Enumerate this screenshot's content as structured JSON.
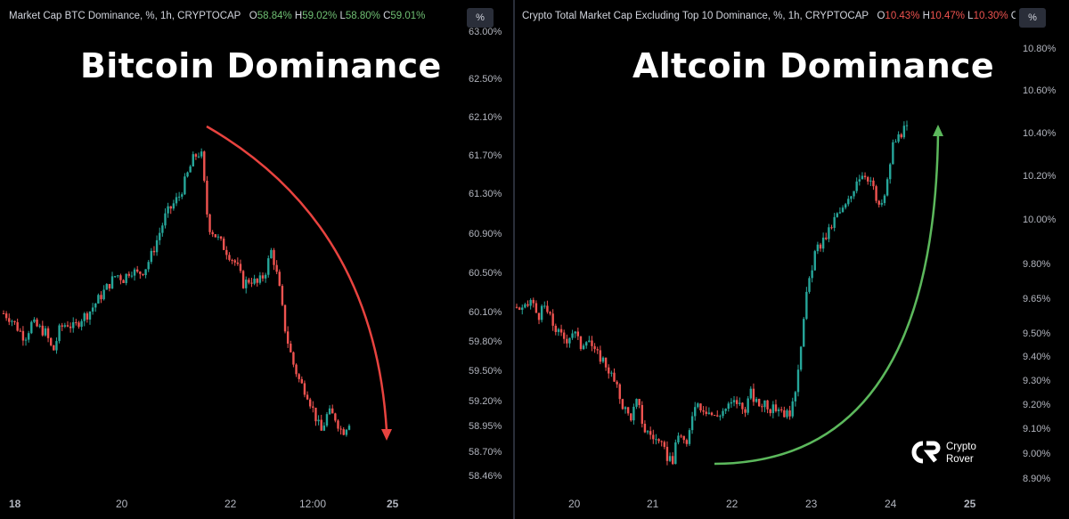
{
  "left": {
    "legend": {
      "name": "Market Cap BTC Dominance, %, 1h, CRYPTOCAP",
      "o_label": "O",
      "o": "58.84%",
      "h_label": "H",
      "h": "59.02%",
      "l_label": "L",
      "l": "58.80%",
      "c_label": "C",
      "c": "59.01%"
    },
    "title": "Bitcoin Dominance",
    "unit_badge": "%"
  },
  "right": {
    "legend": {
      "name": "Crypto Total Market Cap Excluding Top 10 Dominance, %, 1h, CRYPTOCAP",
      "o_label": "O",
      "o": "10.43%",
      "h_label": "H",
      "h": "10.47%",
      "l_label": "L",
      "l": "10.30%",
      "c_label": "C…"
    },
    "title": "Altcoin Dominance",
    "unit_badge": "%"
  },
  "logo": {
    "line1": "Crypto",
    "line2": "Rover"
  },
  "colors": {
    "up": "#26a69a",
    "down": "#ef5350",
    "arrow_down": "#e8433f",
    "arrow_up": "#5cb85c"
  },
  "chart_data": [
    {
      "type": "candlestick",
      "title": "Bitcoin Dominance",
      "unit": "%",
      "y_ticks": [
        "63.00%",
        "62.50%",
        "62.10%",
        "61.70%",
        "61.30%",
        "60.90%",
        "60.50%",
        "60.10%",
        "59.80%",
        "59.50%",
        "59.20%",
        "58.95%",
        "58.70%",
        "58.46%"
      ],
      "x_ticks": [
        "18",
        "20",
        "22",
        "12:00",
        "25"
      ],
      "ylim": [
        58.46,
        63.0
      ],
      "close_path": [
        [
          0,
          60.1
        ],
        [
          8,
          60.05
        ],
        [
          16,
          59.95
        ],
        [
          24,
          59.85
        ],
        [
          32,
          60.0
        ],
        [
          40,
          59.95
        ],
        [
          48,
          59.9
        ],
        [
          56,
          59.7
        ],
        [
          64,
          59.95
        ],
        [
          72,
          60.0
        ],
        [
          80,
          59.95
        ],
        [
          88,
          60.05
        ],
        [
          96,
          60.1
        ],
        [
          104,
          60.2
        ],
        [
          112,
          60.3
        ],
        [
          120,
          60.4
        ],
        [
          128,
          60.5
        ],
        [
          136,
          60.45
        ],
        [
          144,
          60.55
        ],
        [
          152,
          60.5
        ],
        [
          160,
          60.55
        ],
        [
          168,
          60.7
        ],
        [
          176,
          60.9
        ],
        [
          184,
          61.1
        ],
        [
          192,
          61.2
        ],
        [
          200,
          61.3
        ],
        [
          208,
          61.5
        ],
        [
          216,
          61.7
        ],
        [
          224,
          61.75
        ],
        [
          232,
          61.0
        ],
        [
          240,
          60.9
        ],
        [
          248,
          60.8
        ],
        [
          256,
          60.7
        ],
        [
          264,
          60.6
        ],
        [
          272,
          60.4
        ],
        [
          280,
          60.45
        ],
        [
          288,
          60.4
        ],
        [
          296,
          60.5
        ],
        [
          304,
          60.75
        ],
        [
          312,
          60.4
        ],
        [
          320,
          59.9
        ],
        [
          328,
          59.6
        ],
        [
          336,
          59.4
        ],
        [
          344,
          59.3
        ],
        [
          352,
          59.1
        ],
        [
          360,
          58.9
        ],
        [
          368,
          59.1
        ],
        [
          376,
          59.05
        ],
        [
          384,
          58.9
        ],
        [
          392,
          59.01
        ]
      ],
      "annotation": "down-arrow"
    },
    {
      "type": "candlestick",
      "title": "Altcoin Dominance",
      "unit": "%",
      "y_ticks": [
        "10.80%",
        "10.60%",
        "10.40%",
        "10.20%",
        "10.00%",
        "9.80%",
        "9.65%",
        "9.50%",
        "9.40%",
        "9.30%",
        "9.20%",
        "9.10%",
        "9.00%",
        "8.90%"
      ],
      "x_ticks": [
        "20",
        "21",
        "22",
        "23",
        "24",
        "25"
      ],
      "ylim": [
        8.9,
        10.8
      ],
      "close_path": [
        [
          0,
          9.62
        ],
        [
          8,
          9.6
        ],
        [
          16,
          9.65
        ],
        [
          24,
          9.58
        ],
        [
          32,
          9.62
        ],
        [
          40,
          9.55
        ],
        [
          48,
          9.5
        ],
        [
          56,
          9.48
        ],
        [
          64,
          9.52
        ],
        [
          72,
          9.45
        ],
        [
          80,
          9.5
        ],
        [
          88,
          9.42
        ],
        [
          96,
          9.4
        ],
        [
          104,
          9.35
        ],
        [
          112,
          9.28
        ],
        [
          120,
          9.2
        ],
        [
          128,
          9.15
        ],
        [
          136,
          9.22
        ],
        [
          144,
          9.1
        ],
        [
          152,
          9.08
        ],
        [
          160,
          9.05
        ],
        [
          168,
          9.0
        ],
        [
          176,
          8.98
        ],
        [
          184,
          9.1
        ],
        [
          192,
          9.02
        ],
        [
          200,
          9.22
        ],
        [
          208,
          9.2
        ],
        [
          216,
          9.18
        ],
        [
          224,
          9.15
        ],
        [
          232,
          9.18
        ],
        [
          240,
          9.2
        ],
        [
          248,
          9.22
        ],
        [
          256,
          9.18
        ],
        [
          264,
          9.25
        ],
        [
          272,
          9.2
        ],
        [
          280,
          9.22
        ],
        [
          288,
          9.18
        ],
        [
          296,
          9.2
        ],
        [
          304,
          9.16
        ],
        [
          312,
          9.2
        ],
        [
          320,
          9.45
        ],
        [
          328,
          9.7
        ],
        [
          336,
          9.85
        ],
        [
          344,
          9.9
        ],
        [
          352,
          9.95
        ],
        [
          360,
          10.02
        ],
        [
          368,
          10.05
        ],
        [
          376,
          10.1
        ],
        [
          384,
          10.2
        ],
        [
          392,
          10.22
        ],
        [
          400,
          10.18
        ],
        [
          408,
          10.05
        ],
        [
          416,
          10.12
        ],
        [
          424,
          10.35
        ],
        [
          432,
          10.4
        ],
        [
          440,
          10.43
        ]
      ],
      "annotation": "up-arrow"
    }
  ]
}
